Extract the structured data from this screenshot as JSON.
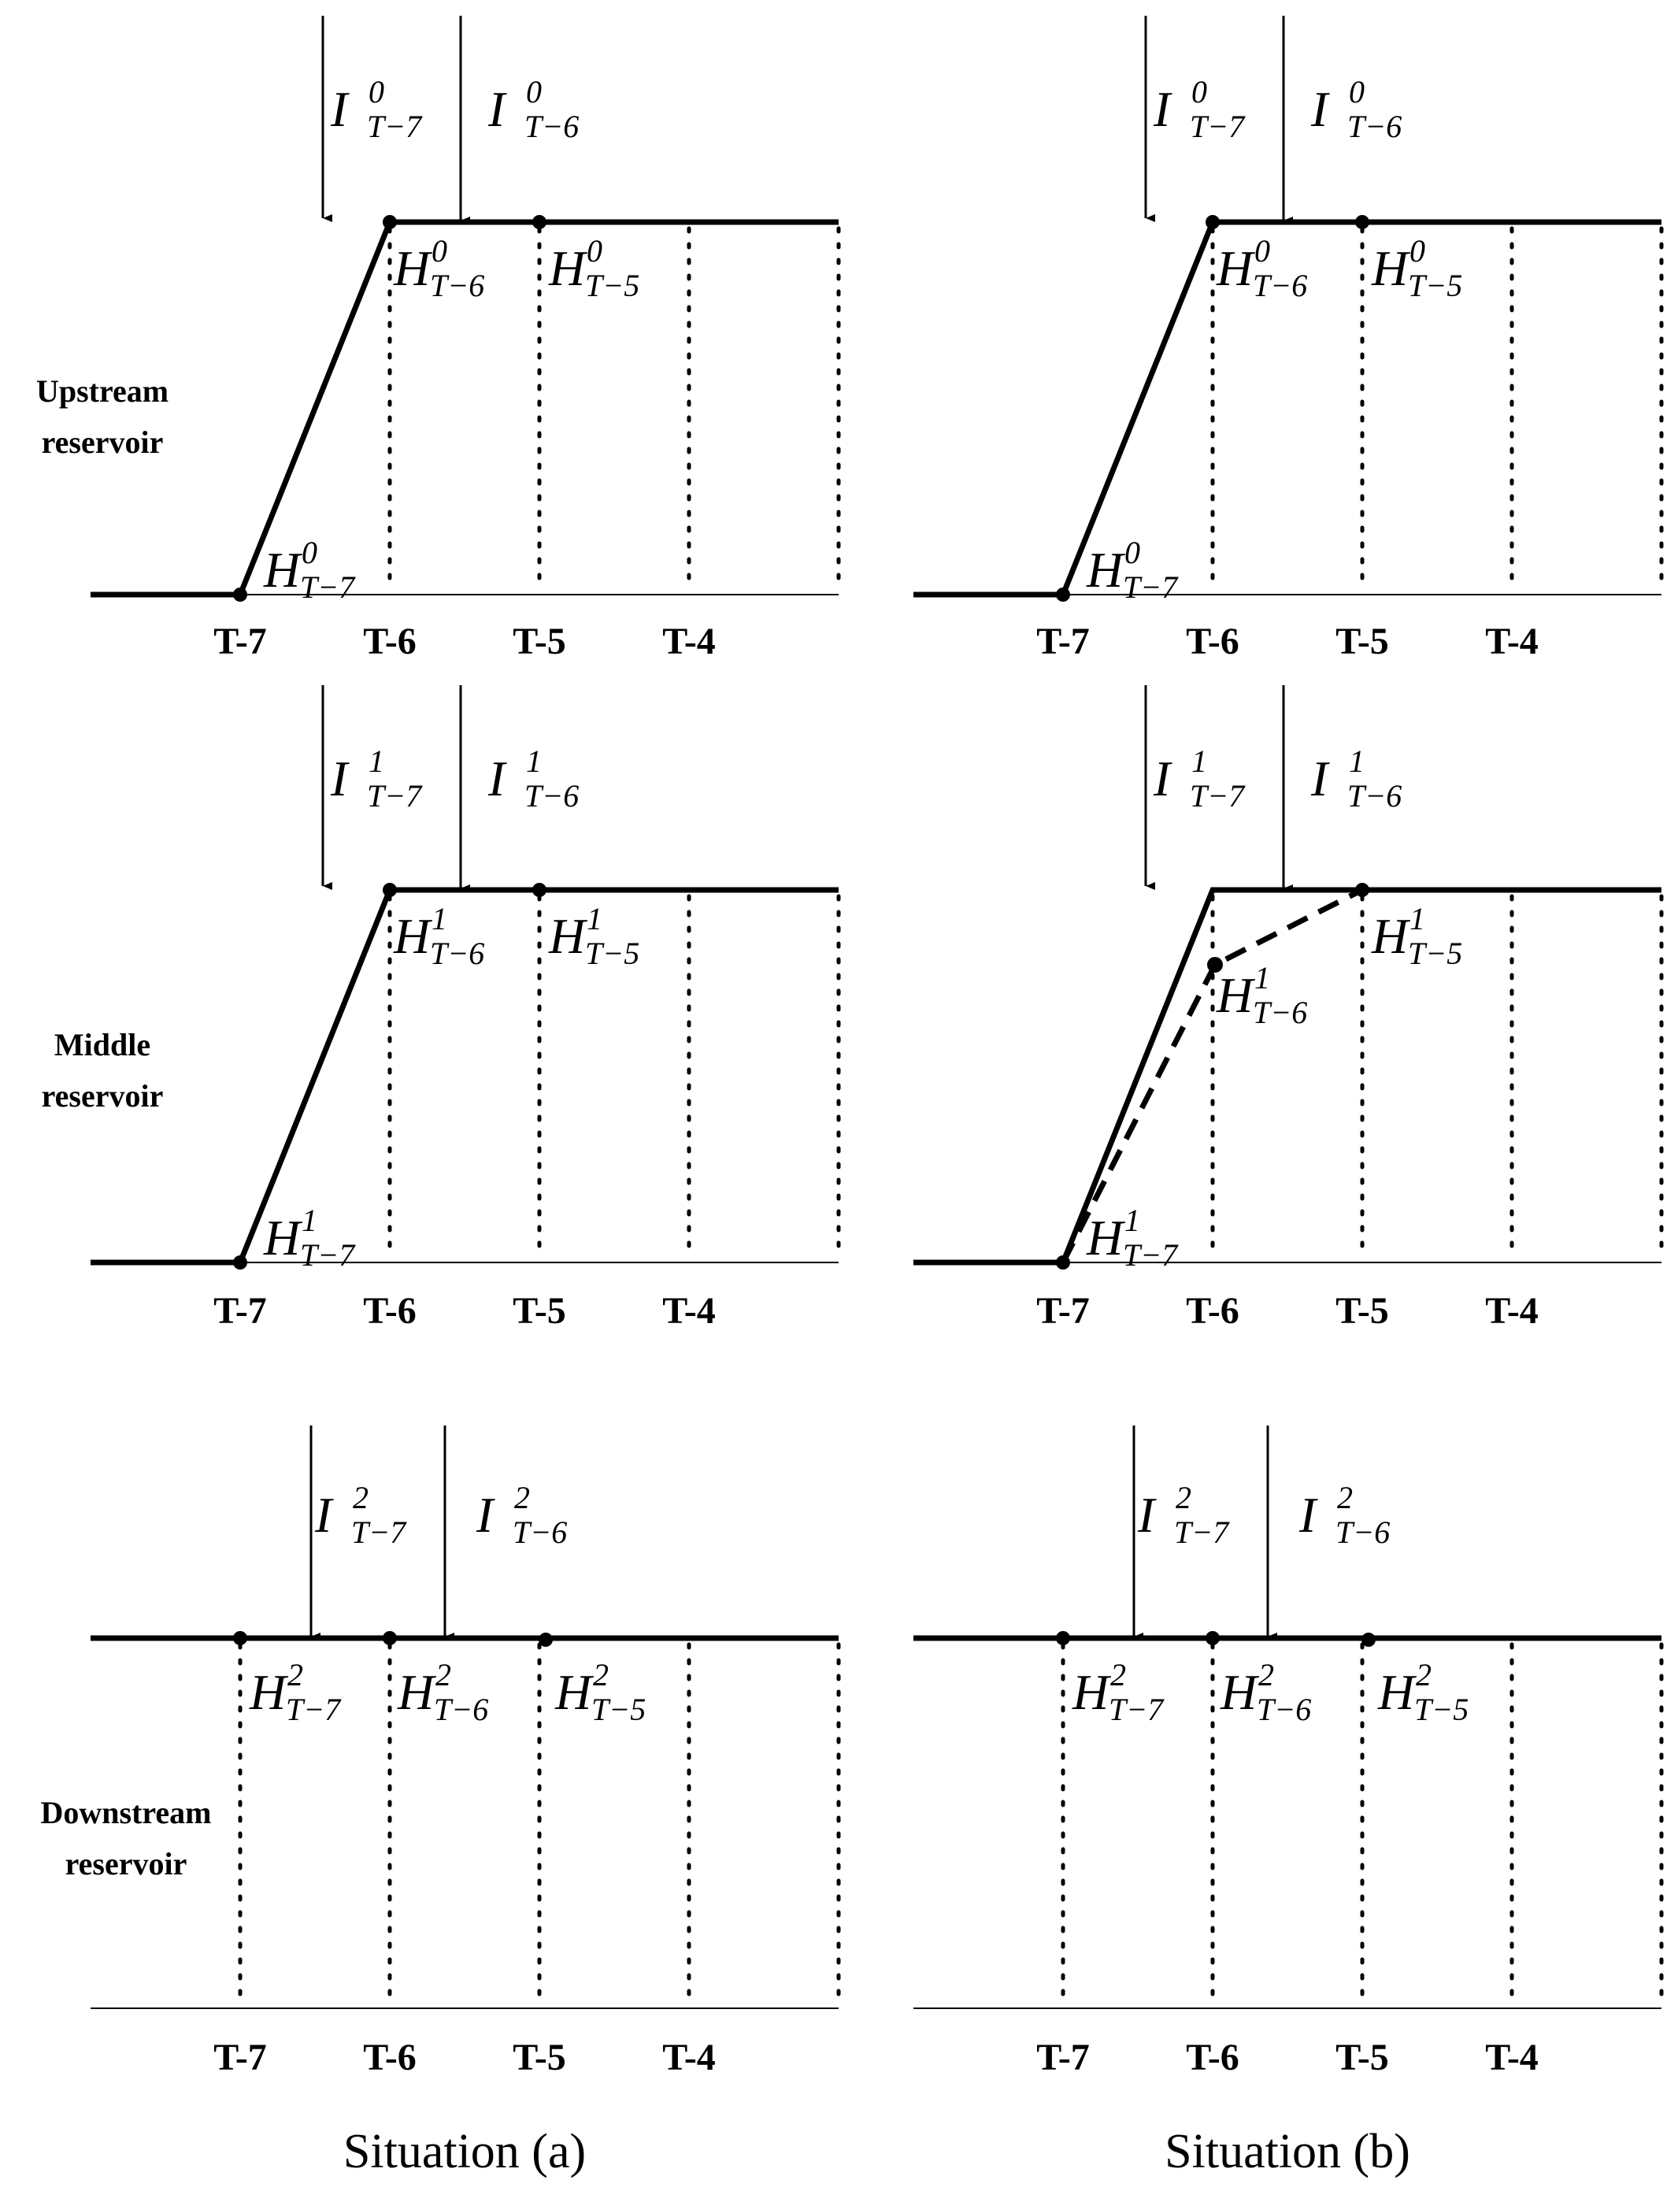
{
  "reservoirs": [
    {
      "label_lines": [
        "Upstream",
        "reservoir"
      ],
      "superscript": "0"
    },
    {
      "label_lines": [
        "Middle",
        "reservoir"
      ],
      "superscript": "1"
    },
    {
      "label_lines": [
        "Downstream",
        "reservoir"
      ],
      "superscript": "2"
    }
  ],
  "time_ticks": [
    "T-7",
    "T-6",
    "T-5",
    "T-4"
  ],
  "inflow_symbol": "I",
  "head_symbol": "H",
  "subscripts": {
    "t7": "T−7",
    "t6": "T−6",
    "t5": "T−5"
  },
  "captions": [
    "Situation (a)",
    "Situation (b)"
  ]
}
